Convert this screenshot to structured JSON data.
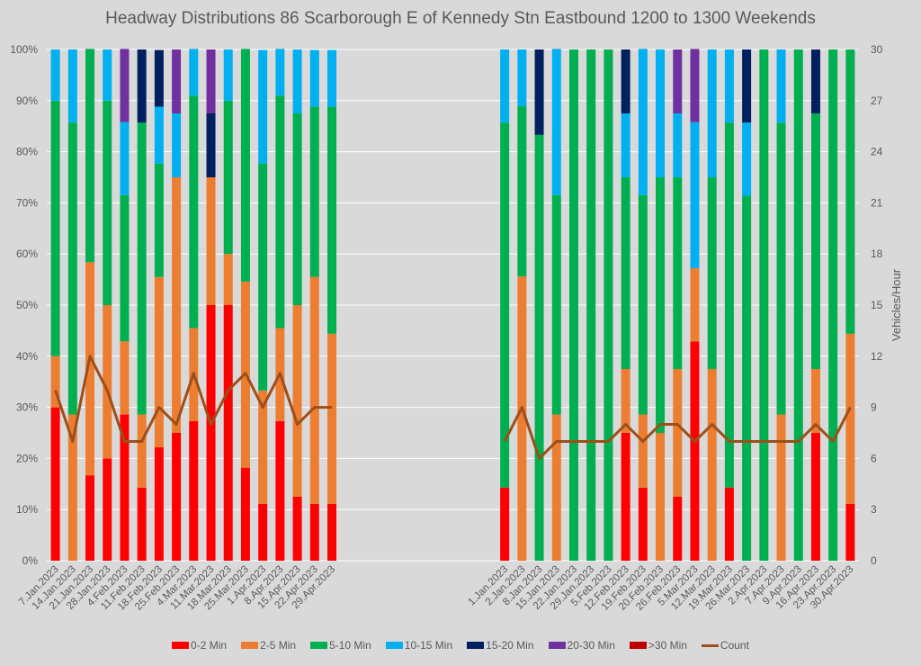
{
  "chart_data": {
    "type": "bar",
    "stacked": true,
    "title": "Headway Distributions 86 Scarborough  E of Kennedy Stn Eastbound 1200 to 1300 Weekends",
    "ylabel": "",
    "y2label": "Vehicles/Hour",
    "ylim": [
      0,
      100
    ],
    "y2lim": [
      0,
      30
    ],
    "yticks": [
      "0%",
      "10%",
      "20%",
      "30%",
      "40%",
      "50%",
      "60%",
      "70%",
      "80%",
      "90%",
      "100%"
    ],
    "y2ticks": [
      "0",
      "3",
      "6",
      "9",
      "12",
      "15",
      "18",
      "21",
      "24",
      "27",
      "30"
    ],
    "grid": true,
    "legend_position": "bottom",
    "total_slots": 47,
    "groups": [
      {
        "name": "left",
        "start_slot": 0,
        "categories": [
          "7.Jan.2023",
          "14.Jan.2023",
          "21.Jan.2023",
          "28.Jan.2023",
          "4.Feb.2023",
          "11.Feb.2023",
          "18.Feb.2023",
          "25.Feb.2023",
          "4.Mar.2023",
          "11.Mar.2023",
          "18.Mar.2023",
          "25.Mar.2023",
          "1.Apr.2023",
          "8.Apr.2023",
          "15.Apr.2023",
          "22.Apr.2023",
          "29.Apr.2023"
        ],
        "series": [
          {
            "name": "0-2 Min",
            "values": [
              30,
              0,
              16.7,
              20,
              28.6,
              14.3,
              22.2,
              25,
              27.3,
              50,
              50,
              18.2,
              11.1,
              27.3,
              12.5,
              11.1,
              11.1
            ]
          },
          {
            "name": "2-5 Min",
            "values": [
              10,
              28.6,
              41.7,
              30,
              14.3,
              14.3,
              33.3,
              50,
              18.2,
              25,
              10,
              36.4,
              22.2,
              18.2,
              37.5,
              44.4,
              33.3
            ]
          },
          {
            "name": "5-10 Min",
            "values": [
              50,
              57.1,
              41.7,
              40,
              28.6,
              57.1,
              22.2,
              0,
              45.5,
              0,
              30,
              45.5,
              44.4,
              45.5,
              37.5,
              33.3,
              44.4
            ]
          },
          {
            "name": "10-15 Min",
            "values": [
              10,
              14.3,
              0,
              10,
              14.3,
              0,
              11.1,
              12.5,
              9.1,
              0,
              10,
              0,
              22.2,
              9.1,
              12.5,
              11.1,
              11.1
            ]
          },
          {
            "name": "15-20 Min",
            "values": [
              0,
              0,
              0,
              0,
              0,
              14.3,
              11.1,
              0,
              0,
              12.5,
              0,
              0,
              0,
              0,
              0,
              0,
              0
            ]
          },
          {
            "name": "20-30 Min",
            "values": [
              0,
              0,
              0,
              0,
              14.3,
              0,
              0,
              12.5,
              0,
              12.5,
              0,
              0,
              0,
              0,
              0,
              0,
              0
            ]
          },
          {
            "name": ">30 Min",
            "values": [
              0,
              0,
              0,
              0,
              0,
              0,
              0,
              0,
              0,
              0,
              0,
              0,
              0,
              0,
              0,
              0,
              0
            ]
          }
        ],
        "count": [
          10,
          7,
          12,
          10,
          7,
          7,
          9,
          8,
          11,
          8,
          10,
          11,
          9,
          11,
          8,
          9,
          9
        ]
      },
      {
        "name": "right",
        "start_slot": 26,
        "categories": [
          "1.Jan.2023",
          "2.Jan.2023",
          "8.Jan.2023",
          "15.Jan.2023",
          "22.Jan.2023",
          "29.Jan.2023",
          "5.Feb.2023",
          "12.Feb.2023",
          "19.Feb.2023",
          "20.Feb.2023",
          "26.Feb.2023",
          "5.Mar.2023",
          "12.Mar.2023",
          "19.Mar.2023",
          "26.Mar.2023",
          "2.Apr.2023",
          "7.Apr.2023",
          "9.Apr.2023",
          "16.Apr.2023",
          "23.Apr.2023",
          "30.Apr.2023"
        ],
        "series": [
          {
            "name": "0-2 Min",
            "values": [
              14.3,
              0,
              0,
              0,
              0,
              0,
              0,
              25,
              14.3,
              0,
              12.5,
              42.9,
              0,
              14.3,
              0,
              0,
              0,
              0,
              25,
              0,
              11.1
            ]
          },
          {
            "name": "2-5 Min",
            "values": [
              0,
              55.6,
              0,
              28.6,
              0,
              0,
              0,
              12.5,
              14.3,
              25,
              25,
              14.3,
              37.5,
              0,
              0,
              0,
              28.6,
              0,
              12.5,
              0,
              33.3
            ]
          },
          {
            "name": "5-10 Min",
            "values": [
              71.4,
              33.3,
              83.3,
              42.9,
              100,
              100,
              100,
              37.5,
              42.9,
              50,
              37.5,
              0,
              37.5,
              71.4,
              71.4,
              100,
              57.1,
              100,
              50,
              100,
              55.6
            ]
          },
          {
            "name": "10-15 Min",
            "values": [
              14.3,
              11.1,
              0,
              28.6,
              0,
              0,
              0,
              12.5,
              28.6,
              25,
              12.5,
              28.6,
              25,
              14.3,
              14.3,
              0,
              14.3,
              0,
              0,
              0,
              0
            ]
          },
          {
            "name": "15-20 Min",
            "values": [
              0,
              0,
              16.7,
              0,
              0,
              0,
              0,
              12.5,
              0,
              0,
              0,
              0,
              0,
              0,
              14.3,
              0,
              0,
              0,
              12.5,
              0,
              0
            ]
          },
          {
            "name": "20-30 Min",
            "values": [
              0,
              0,
              0,
              0,
              0,
              0,
              0,
              0,
              0,
              0,
              12.5,
              14.3,
              0,
              0,
              0,
              0,
              0,
              0,
              0,
              0,
              0
            ]
          },
          {
            "name": ">30 Min",
            "values": [
              0,
              0,
              0,
              0,
              0,
              0,
              0,
              0,
              0,
              0,
              0,
              0,
              0,
              0,
              0,
              0,
              0,
              0,
              0,
              0,
              0
            ]
          }
        ],
        "count": [
          7,
          9,
          6,
          7,
          7,
          7,
          7,
          8,
          7,
          8,
          8,
          7,
          8,
          7,
          7,
          7,
          7,
          7,
          8,
          7,
          9
        ]
      }
    ],
    "legend": [
      {
        "name": "0-2 Min",
        "color": "#ff0000",
        "kind": "bar"
      },
      {
        "name": "2-5 Min",
        "color": "#ed7d31",
        "kind": "bar"
      },
      {
        "name": "5-10 Min",
        "color": "#00b050",
        "kind": "bar"
      },
      {
        "name": "10-15 Min",
        "color": "#00b0f0",
        "kind": "bar"
      },
      {
        "name": "15-20 Min",
        "color": "#002060",
        "kind": "bar"
      },
      {
        "name": "20-30 Min",
        "color": "#7030a0",
        "kind": "bar"
      },
      {
        "name": ">30 Min",
        "color": "#c00000",
        "kind": "bar"
      },
      {
        "name": "Count",
        "color": "#9c4f1a",
        "kind": "line"
      }
    ]
  }
}
